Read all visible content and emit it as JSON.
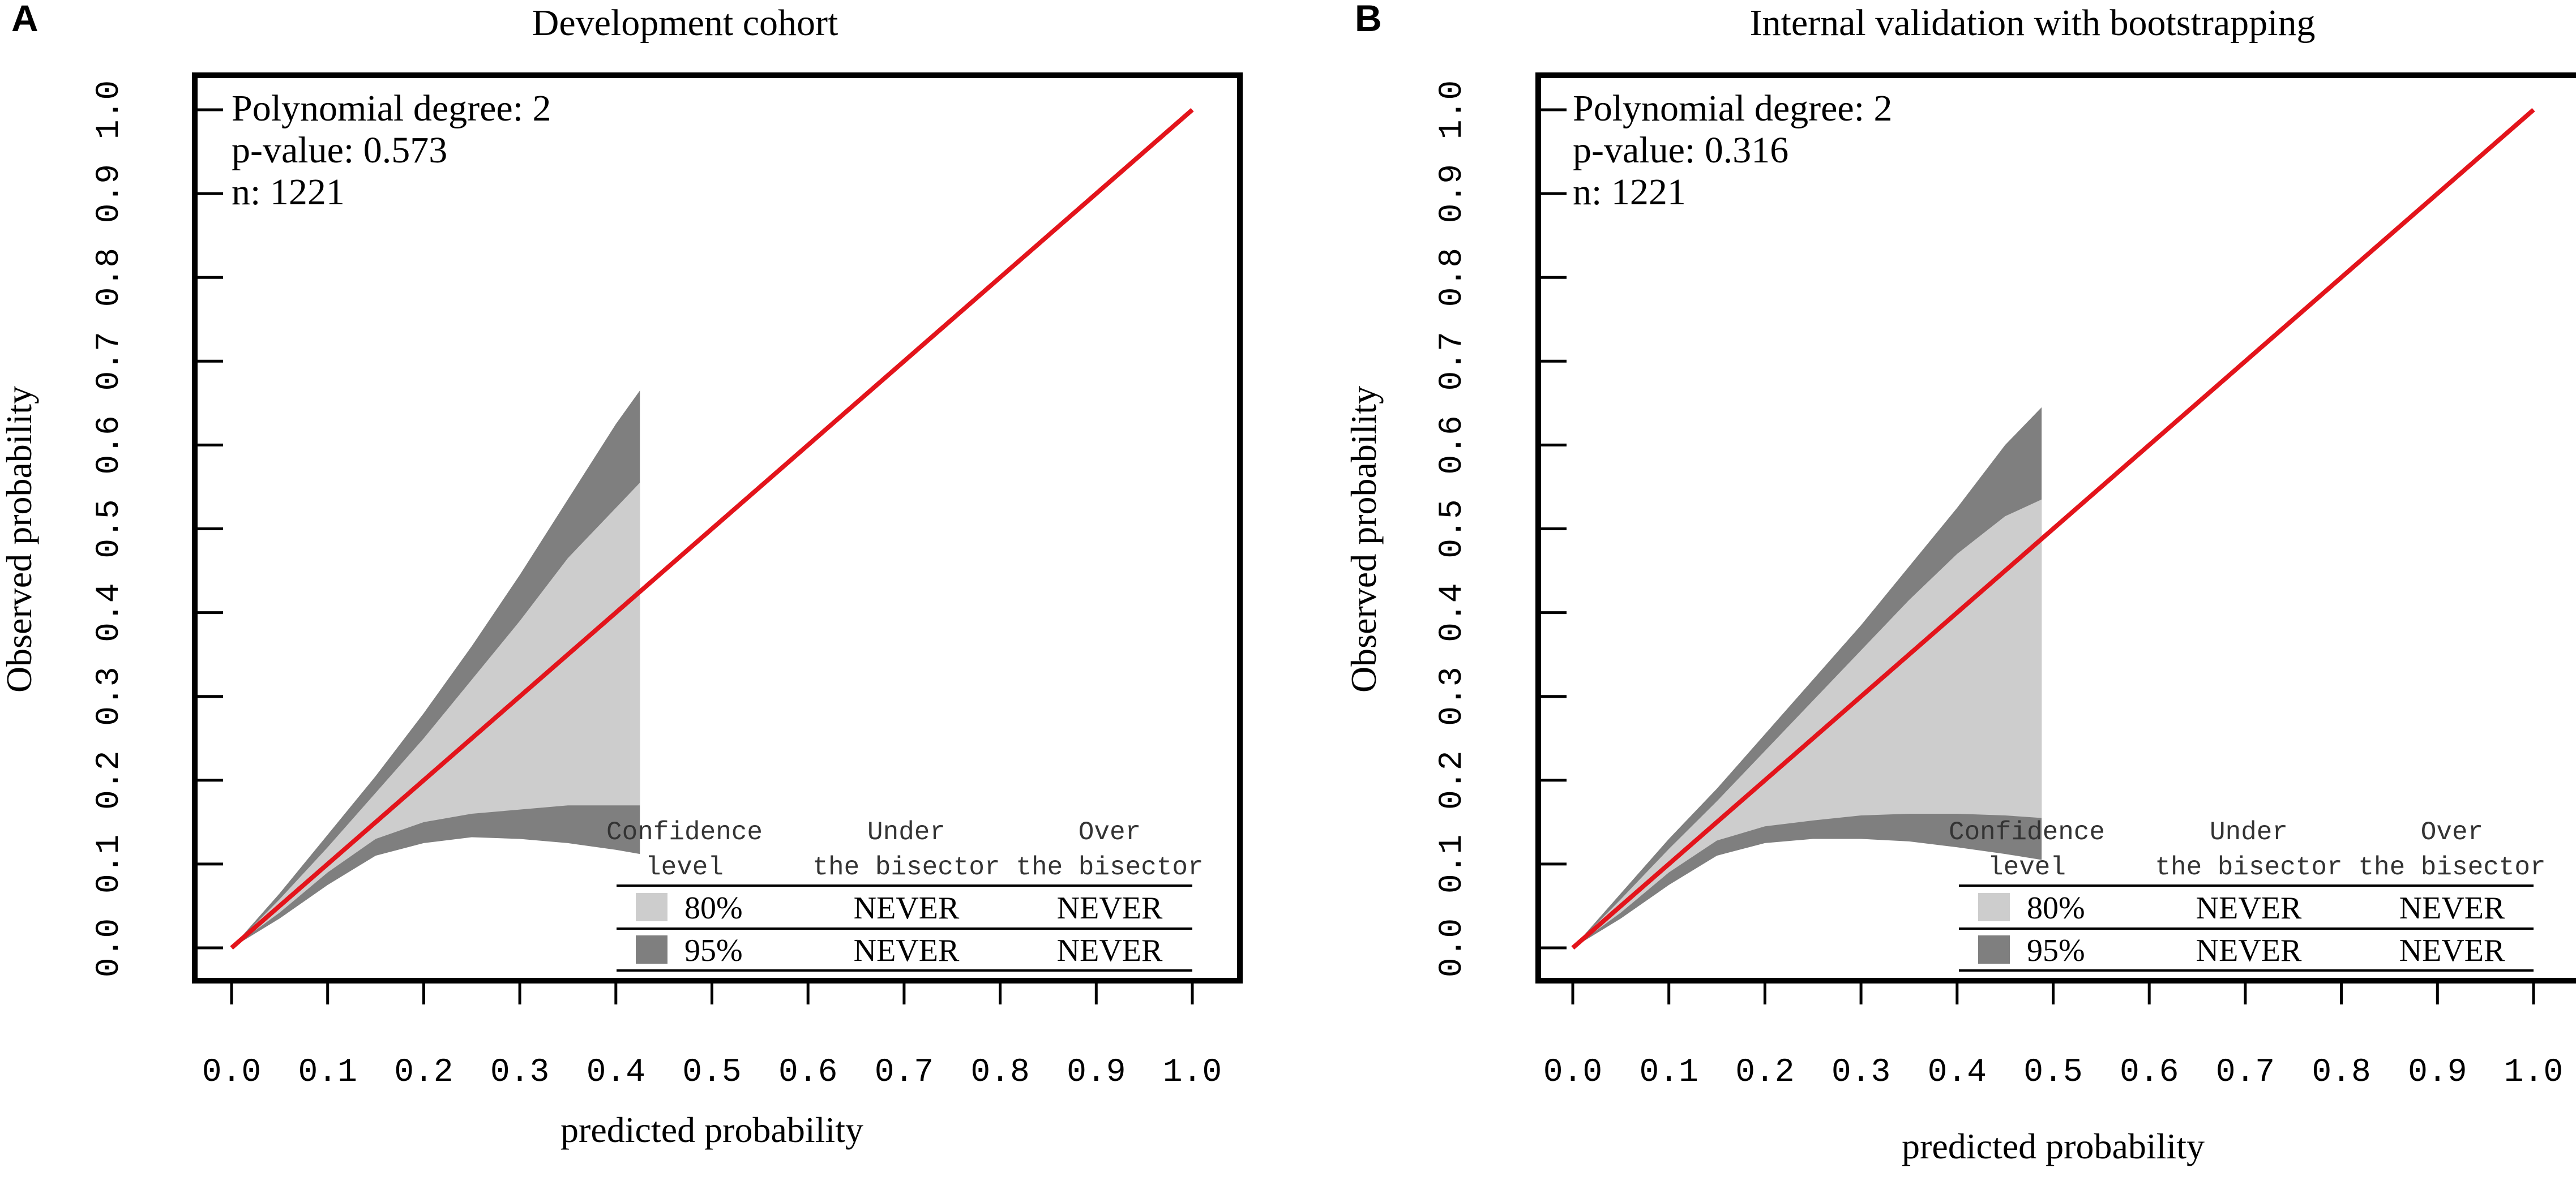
{
  "chart_data": [
    {
      "type": "calibration",
      "panel_label": "A",
      "title": "Development cohort",
      "xlabel": "predicted probability",
      "ylabel": "Observed probability",
      "xlim": [
        0,
        1
      ],
      "ylim": [
        0,
        1
      ],
      "xticks": [
        "0.0",
        "0.1",
        "0.2",
        "0.3",
        "0.4",
        "0.5",
        "0.6",
        "0.7",
        "0.8",
        "0.9",
        "1.0"
      ],
      "yticks": [
        "0.0",
        "0.1",
        "0.2",
        "0.3",
        "0.4",
        "0.5",
        "0.6",
        "0.7",
        "0.8",
        "0.9",
        "1.0"
      ],
      "info": [
        "Polynomial degree: 2",
        "p-value: 0.573",
        "n: 1221"
      ],
      "bisector": {
        "x": [
          0,
          1
        ],
        "y": [
          0,
          1
        ]
      },
      "band_x": [
        0,
        0.05,
        0.1,
        0.15,
        0.2,
        0.25,
        0.3,
        0.35,
        0.4,
        0.425
      ],
      "ci95_upper": [
        0,
        0.065,
        0.135,
        0.205,
        0.28,
        0.36,
        0.445,
        0.535,
        0.625,
        0.665
      ],
      "ci80_upper": [
        0,
        0.058,
        0.12,
        0.185,
        0.25,
        0.32,
        0.39,
        0.465,
        0.525,
        0.555
      ],
      "ci80_lower": [
        0,
        0.042,
        0.09,
        0.13,
        0.15,
        0.16,
        0.165,
        0.17,
        0.17,
        0.17
      ],
      "ci95_lower": [
        0,
        0.035,
        0.075,
        0.11,
        0.125,
        0.132,
        0.13,
        0.125,
        0.117,
        0.112
      ],
      "legend_table": {
        "headers": [
          [
            "Confidence",
            "level"
          ],
          [
            "Under",
            "the bisector"
          ],
          [
            "Over",
            "the bisector"
          ]
        ],
        "rows": [
          {
            "level": "80%",
            "under": "NEVER",
            "over": "NEVER",
            "color": "#cdcdcd"
          },
          {
            "level": "95%",
            "under": "NEVER",
            "over": "NEVER",
            "color": "#7f7f7f"
          }
        ]
      }
    },
    {
      "type": "calibration",
      "panel_label": "B",
      "title": "Internal validation with bootstrapping",
      "xlabel": "predicted probability",
      "ylabel": "Observed probability",
      "xlim": [
        0,
        1
      ],
      "ylim": [
        0,
        1
      ],
      "xticks": [
        "0.0",
        "0.1",
        "0.2",
        "0.3",
        "0.4",
        "0.5",
        "0.6",
        "0.7",
        "0.8",
        "0.9",
        "1.0"
      ],
      "yticks": [
        "0.0",
        "0.1",
        "0.2",
        "0.3",
        "0.4",
        "0.5",
        "0.6",
        "0.7",
        "0.8",
        "0.9",
        "1.0"
      ],
      "info": [
        "Polynomial degree: 2",
        "p-value: 0.316",
        "n: 1221"
      ],
      "bisector": {
        "x": [
          0,
          1
        ],
        "y": [
          0,
          1
        ]
      },
      "band_x": [
        0,
        0.05,
        0.1,
        0.15,
        0.2,
        0.25,
        0.3,
        0.35,
        0.4,
        0.45,
        0.488
      ],
      "ci95_upper": [
        0,
        0.065,
        0.13,
        0.19,
        0.255,
        0.32,
        0.385,
        0.455,
        0.525,
        0.6,
        0.645
      ],
      "ci80_upper": [
        0,
        0.058,
        0.118,
        0.175,
        0.235,
        0.295,
        0.355,
        0.415,
        0.47,
        0.515,
        0.535
      ],
      "ci80_lower": [
        0,
        0.042,
        0.09,
        0.128,
        0.145,
        0.152,
        0.158,
        0.16,
        0.16,
        0.158,
        0.155
      ],
      "ci95_lower": [
        0,
        0.035,
        0.075,
        0.11,
        0.125,
        0.13,
        0.13,
        0.127,
        0.12,
        0.112,
        0.105
      ],
      "legend_table": {
        "headers": [
          [
            "Confidence",
            "level"
          ],
          [
            "Under",
            "the bisector"
          ],
          [
            "Over",
            "the bisector"
          ]
        ],
        "rows": [
          {
            "level": "80%",
            "under": "NEVER",
            "over": "NEVER",
            "color": "#cdcdcd"
          },
          {
            "level": "95%",
            "under": "NEVER",
            "over": "NEVER",
            "color": "#7f7f7f"
          }
        ]
      }
    }
  ],
  "colors": {
    "bisector": "#e3141b",
    "ci80": "#cdcdcd",
    "ci95": "#7f7f7f",
    "frame": "#000000"
  }
}
